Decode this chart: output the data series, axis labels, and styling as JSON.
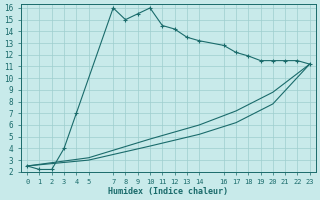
{
  "xlabel": "Humidex (Indice chaleur)",
  "bg_color": "#c8eaea",
  "grid_color": "#9ecece",
  "line_color": "#1a6b6b",
  "xlim": [
    -0.5,
    23.5
  ],
  "ylim": [
    2,
    16.3
  ],
  "xticks": [
    0,
    1,
    2,
    3,
    4,
    5,
    7,
    8,
    9,
    10,
    11,
    12,
    13,
    14,
    16,
    17,
    18,
    19,
    20,
    21,
    22,
    23
  ],
  "yticks": [
    2,
    3,
    4,
    5,
    6,
    7,
    8,
    9,
    10,
    11,
    12,
    13,
    14,
    15,
    16
  ],
  "line1_x": [
    0,
    1,
    2,
    3,
    4,
    7,
    8,
    9,
    10,
    11,
    12,
    13,
    14,
    16,
    17,
    18,
    19,
    20,
    21,
    22,
    23
  ],
  "line1_y": [
    2.5,
    2.2,
    2.2,
    4.0,
    7.0,
    16.0,
    15.0,
    15.5,
    16.0,
    14.5,
    14.2,
    13.5,
    13.2,
    12.8,
    12.2,
    11.9,
    11.5,
    11.5,
    11.5,
    11.5,
    11.2
  ],
  "line2_x": [
    0,
    23
  ],
  "line2_y": [
    2.5,
    11.2
  ],
  "line3_x": [
    0,
    23
  ],
  "line3_y": [
    2.5,
    11.2
  ],
  "line2_ctrl_x": [
    0,
    5,
    10,
    14,
    17,
    20,
    23
  ],
  "line2_ctrl_y": [
    2.5,
    3.2,
    4.8,
    6.0,
    7.2,
    8.8,
    11.2
  ],
  "line3_ctrl_x": [
    0,
    5,
    10,
    14,
    17,
    20,
    23
  ],
  "line3_ctrl_y": [
    2.5,
    3.0,
    4.2,
    5.2,
    6.2,
    7.8,
    11.2
  ]
}
